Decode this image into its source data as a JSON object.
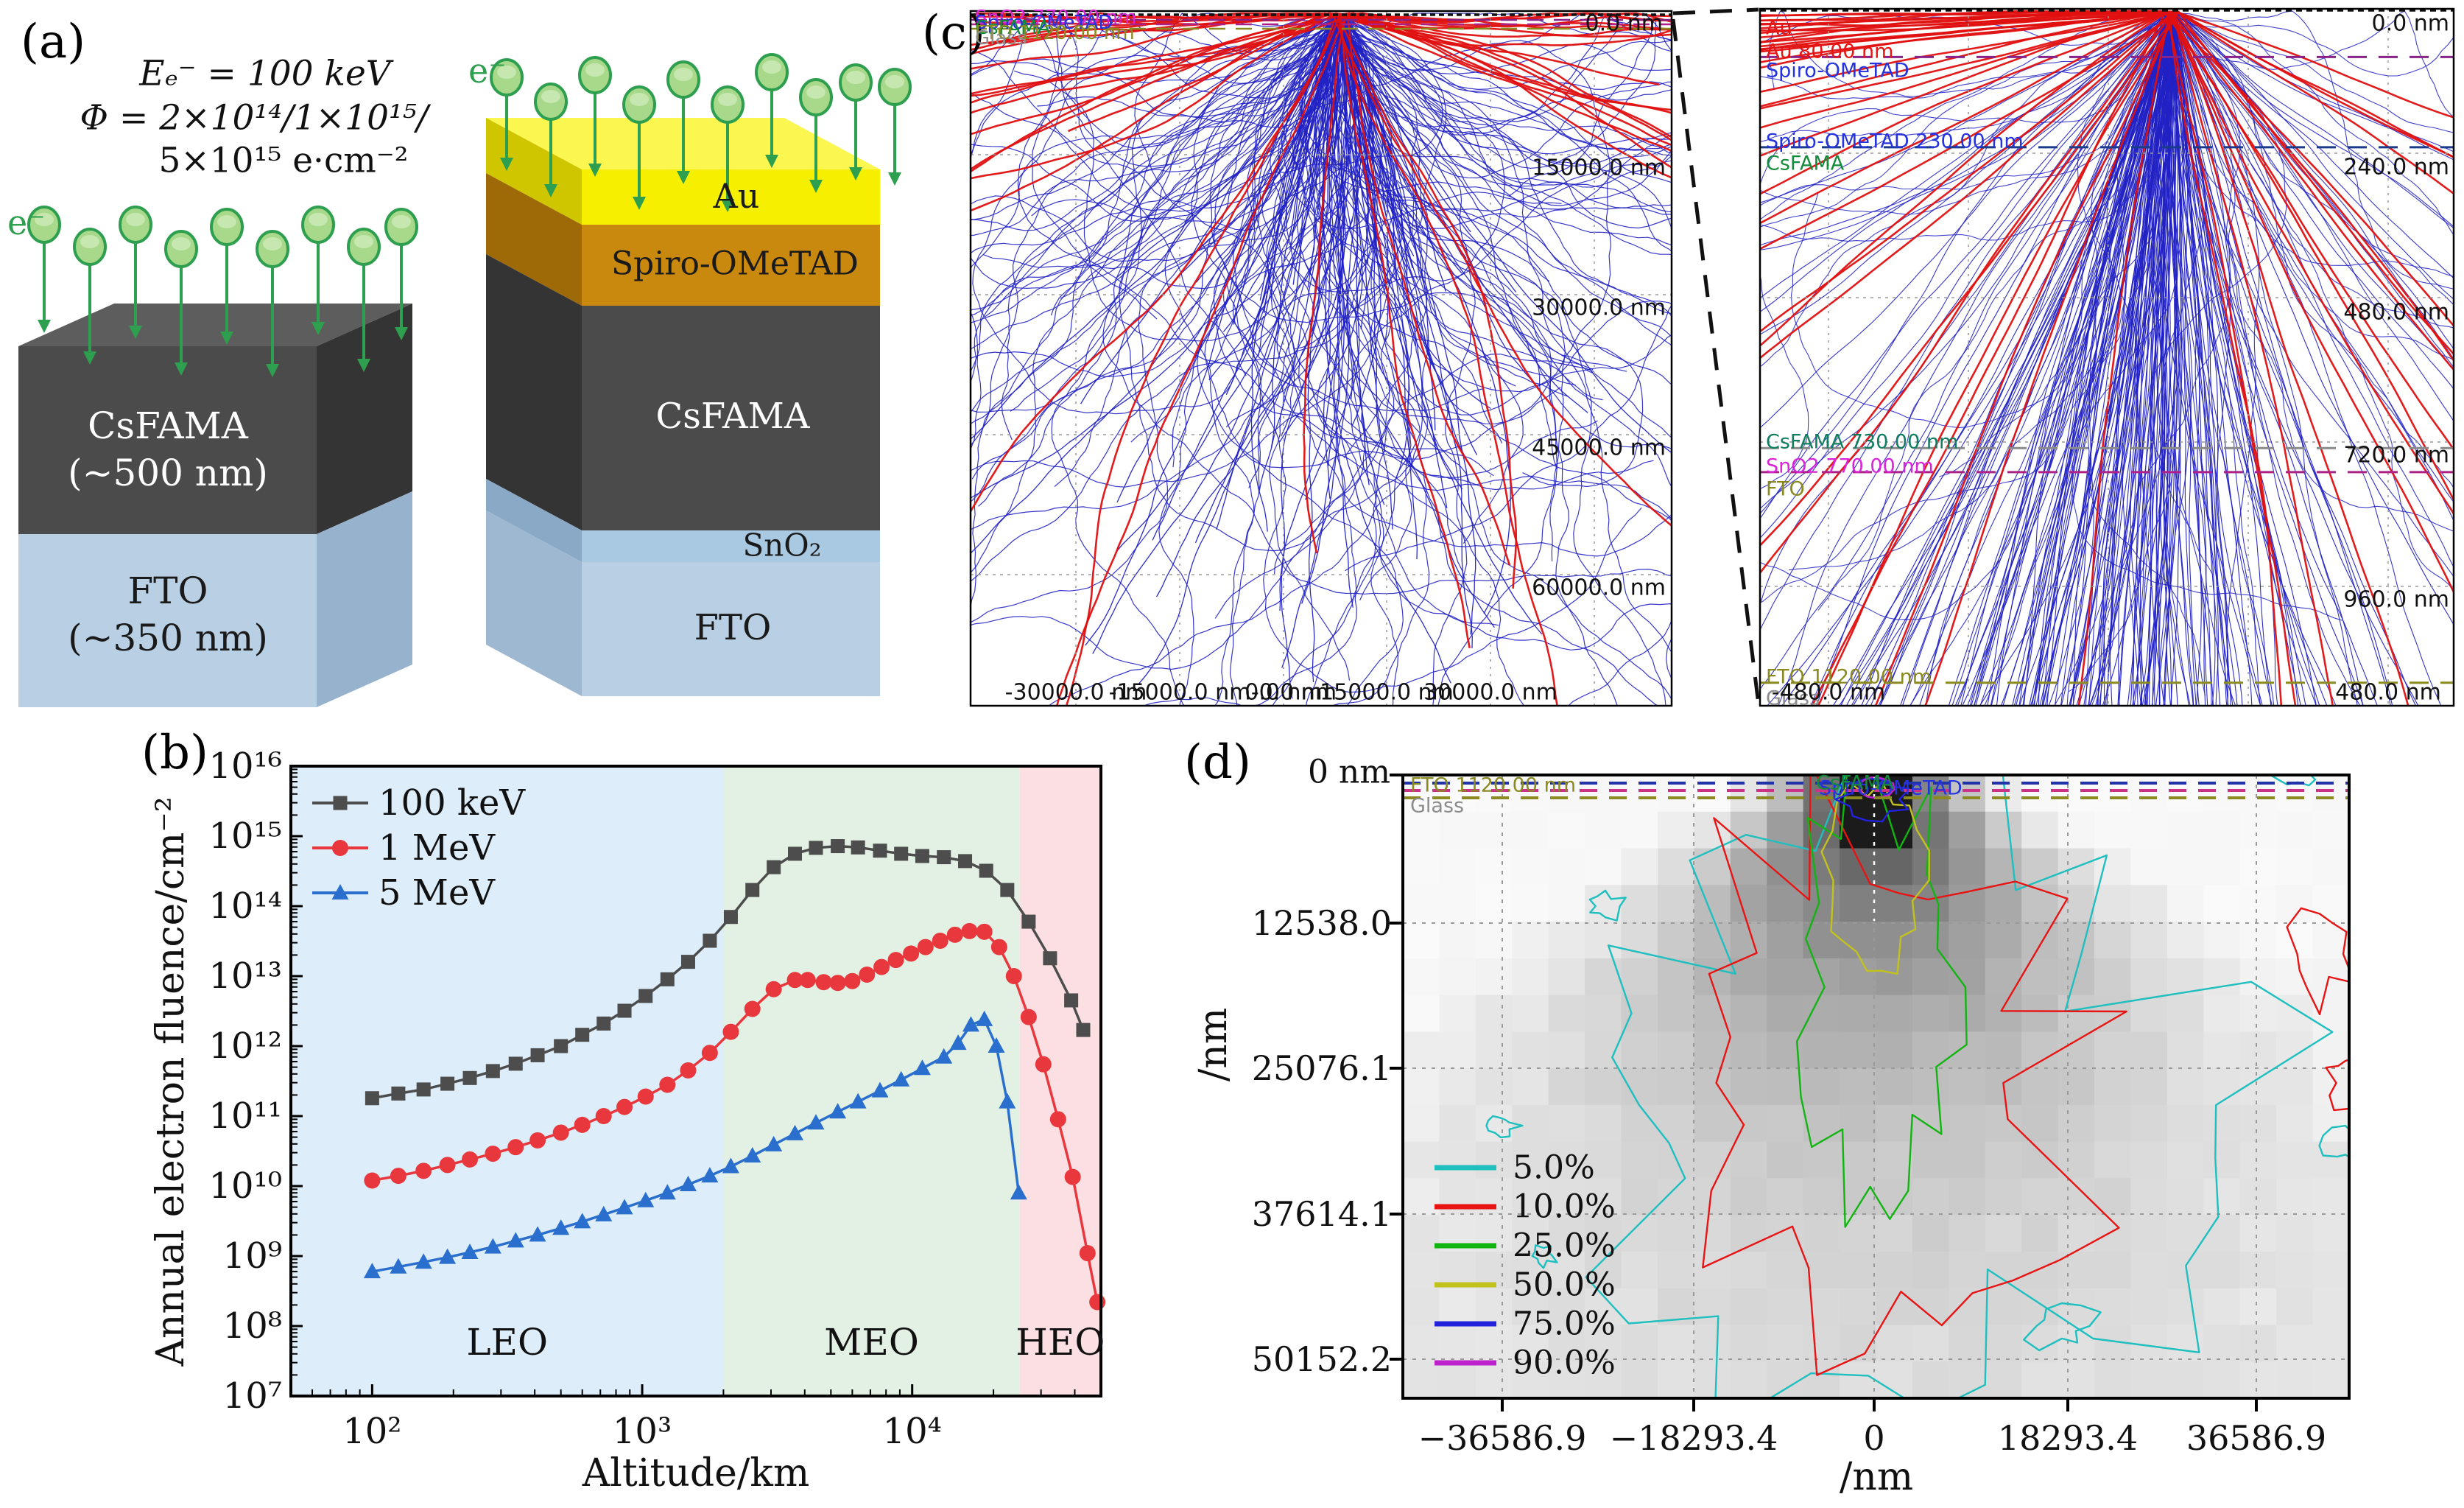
{
  "figure": {
    "background": "#ffffff"
  },
  "panel_a": {
    "label": "(a)",
    "energy": "Eₑ⁻ =  100 keV",
    "fluence1": "Φ = 2×10¹⁴/1×10¹⁵/",
    "fluence2": "5×10¹⁵ e·cm⁻²",
    "electron": "e⁻",
    "left_stack": {
      "layer1": "CsFAMA",
      "layer1_sub": "(~500 nm)",
      "layer2": "FTO",
      "layer2_sub": "(~350 nm)",
      "csfama_color": "#4b4b4b",
      "fto_color": "#b9cfe3"
    },
    "right_stack": {
      "au": "Au",
      "spiro": "Spiro-OMeTAD",
      "csfama": "CsFAMA",
      "sno2": "SnO₂",
      "fto": "FTO",
      "au_color": "#f6ef00",
      "spiro_color": "#c9880e",
      "csfama_color": "#4b4b4b",
      "sno2_color": "#a9c8e2",
      "fto_color": "#b9cfe3"
    },
    "electron_color": "#2e9e4f"
  },
  "panel_b": {
    "label": "(b)"
  },
  "panel_c": {
    "label": "(c)",
    "left_sim": {
      "top_overlap_labels": [
        {
          "text": "SnO2 770.00 nm",
          "color": "#d924d9"
        },
        {
          "text": "Spiro-OMeTAD",
          "color": "#2433dd"
        },
        {
          "text": "CsFAMA",
          "color": "#128c3a"
        },
        {
          "text": "FTO 1120.00 nm",
          "color": "#8a8a20"
        },
        {
          "text": "Glass",
          "color": "#8c8c8c"
        }
      ],
      "surface_label": "0.0 nm",
      "depth_labels": [
        "15000.0 nm",
        "30000.0 nm",
        "45000.0 nm",
        "60000.0 nm"
      ],
      "x_labels": [
        "-30000.0 nm",
        "-15000.0 nm",
        "0.0 nm",
        "15000.0 nm",
        "30000.0 nm"
      ],
      "overlap_x_label": "-0.0 nm",
      "trajectory_colors": {
        "electron": "#2121c4",
        "backscattered": "#e01010"
      }
    },
    "right_sim": {
      "layer_labels": [
        {
          "text": "Au",
          "color": "#e81414"
        },
        {
          "text": "Au 80.00 nm",
          "color": "#e81414"
        },
        {
          "text": "Spiro-OMeTAD",
          "color": "#2433dd"
        },
        {
          "text": "Spiro-OMeTAD 230.00 nm",
          "color": "#2433dd"
        },
        {
          "text": "CsFAMA",
          "color": "#128c3a"
        },
        {
          "text": "CsFAMA 730.00 nm",
          "color": "#0e7d60"
        },
        {
          "text": "SnO2 770.00 nm",
          "color": "#d924d9"
        },
        {
          "text": "FTO",
          "color": "#8a8a20"
        },
        {
          "text": "FTO 1120.00 nm",
          "color": "#8a8a20"
        },
        {
          "text": "Glass",
          "color": "#8c8c8c"
        }
      ],
      "depth_labels": [
        "0.0 nm",
        "240.0 nm",
        "480.0 nm",
        "720.0 nm",
        "960.0 nm"
      ],
      "x_labels": [
        "-480.0 nm",
        "480.0 nm"
      ],
      "boundary_depths_nm": [
        80,
        230,
        730,
        770,
        1120
      ],
      "boundary_colors": [
        "#882288",
        "#1a3a8a",
        "#8a8a8a",
        "#aa2288",
        "#8a8a20"
      ]
    }
  },
  "panel_d": {
    "label": "(d)",
    "top_labels": [
      {
        "text": "FTO 1120.00 nm",
        "color": "#8a8a20"
      },
      {
        "text": "Glass",
        "color": "#8c8c8c"
      },
      {
        "text": "Spiro-OMeTAD",
        "color": "#2433dd"
      },
      {
        "text": "CsFAMA",
        "color": "#128c3a"
      }
    ],
    "y_zero_label": "0 nm"
  },
  "chart_data": [
    {
      "id": "fluence_vs_altitude",
      "panel": "b",
      "type": "line",
      "title": "",
      "xlabel": "Altitude/km",
      "ylabel": "Annual electron fluence/cm⁻²",
      "xscale": "log",
      "yscale": "log",
      "xlim": [
        50,
        50000
      ],
      "ylim": [
        10000000.0,
        1e+16
      ],
      "x_tick_labels": [
        "10²",
        "10³",
        "10⁴"
      ],
      "x_tick_values": [
        100,
        1000,
        10000
      ],
      "y_tick_labels": [
        "10¹⁶",
        "10¹⁵",
        "10¹⁴",
        "10¹³",
        "10¹²",
        "10¹¹",
        "10¹⁰",
        "10⁹",
        "10⁸",
        "10⁷"
      ],
      "y_tick_values": [
        1e+16,
        1000000000000000.0,
        100000000000000.0,
        10000000000000.0,
        1000000000000.0,
        100000000000.0,
        10000000000.0,
        1000000000.0,
        100000000.0,
        10000000.0
      ],
      "legend_position": "top-left",
      "grid": false,
      "regions": [
        {
          "label": "LEO",
          "from": 50,
          "to": 2000,
          "color": "#ddedf9"
        },
        {
          "label": "MEO",
          "from": 2000,
          "to": 25000,
          "color": "#e3f0e4"
        },
        {
          "label": "HEO",
          "from": 25000,
          "to": 50000,
          "color": "#fbdfe2"
        }
      ],
      "series": [
        {
          "name": "100 keV",
          "color": "#4d4d4d",
          "marker": "square",
          "data": [
            [
              100,
              180000000000.0
            ],
            [
              125,
              210000000000.0
            ],
            [
              155,
              240000000000.0
            ],
            [
              190,
              290000000000.0
            ],
            [
              230,
              350000000000.0
            ],
            [
              280,
              440000000000.0
            ],
            [
              340,
              560000000000.0
            ],
            [
              410,
              740000000000.0
            ],
            [
              500,
              1000000000000.0
            ],
            [
              600,
              1450000000000.0
            ],
            [
              720,
              2100000000000.0
            ],
            [
              860,
              3200000000000.0
            ],
            [
              1030,
              5200000000000.0
            ],
            [
              1240,
              9000000000000.0
            ],
            [
              1480,
              16000000000000.0
            ],
            [
              1780,
              32000000000000.0
            ],
            [
              2130,
              70000000000000.0
            ],
            [
              2560,
              170000000000000.0
            ],
            [
              3070,
              360000000000000.0
            ],
            [
              3680,
              560000000000000.0
            ],
            [
              4400,
              680000000000000.0
            ],
            [
              5300,
              720000000000000.0
            ],
            [
              6300,
              690000000000000.0
            ],
            [
              7600,
              620000000000000.0
            ],
            [
              9100,
              560000000000000.0
            ],
            [
              10900,
              520000000000000.0
            ],
            [
              13100,
              500000000000000.0
            ],
            [
              15700,
              440000000000000.0
            ],
            [
              18800,
              320000000000000.0
            ],
            [
              22500,
              170000000000000.0
            ],
            [
              27000,
              60000000000000.0
            ],
            [
              32400,
              18000000000000.0
            ],
            [
              38800,
              4500000000000.0
            ],
            [
              43000,
              1700000000000.0
            ]
          ]
        },
        {
          "name": "1 MeV",
          "color": "#e8383d",
          "marker": "circle",
          "data": [
            [
              100,
              12000000000.0
            ],
            [
              125,
              14000000000.0
            ],
            [
              155,
              16500000000.0
            ],
            [
              190,
              20000000000.0
            ],
            [
              230,
              24000000000.0
            ],
            [
              280,
              29000000000.0
            ],
            [
              340,
              36000000000.0
            ],
            [
              410,
              45000000000.0
            ],
            [
              500,
              58000000000.0
            ],
            [
              600,
              75000000000.0
            ],
            [
              720,
              100000000000.0
            ],
            [
              860,
              135000000000.0
            ],
            [
              1030,
              190000000000.0
            ],
            [
              1240,
              280000000000.0
            ],
            [
              1480,
              450000000000.0
            ],
            [
              1780,
              800000000000.0
            ],
            [
              2130,
              1600000000000.0
            ],
            [
              2560,
              3400000000000.0
            ],
            [
              3070,
              6500000000000.0
            ],
            [
              3680,
              8800000000000.0
            ],
            [
              4100,
              8800000000000.0
            ],
            [
              4700,
              8200000000000.0
            ],
            [
              5300,
              8000000000000.0
            ],
            [
              6000,
              8500000000000.0
            ],
            [
              6800,
              10500000000000.0
            ],
            [
              7700,
              13500000000000.0
            ],
            [
              8700,
              17000000000000.0
            ],
            [
              9900,
              21000000000000.0
            ],
            [
              11200,
              26000000000000.0
            ],
            [
              12700,
              32000000000000.0
            ],
            [
              14400,
              39000000000000.0
            ],
            [
              16300,
              44000000000000.0
            ],
            [
              18500,
              43000000000000.0
            ],
            [
              21000,
              26000000000000.0
            ],
            [
              23800,
              10000000000000.0
            ],
            [
              27000,
              2600000000000.0
            ],
            [
              30600,
              550000000000.0
            ],
            [
              34700,
              90000000000.0
            ],
            [
              39300,
              13500000000.0
            ],
            [
              44600,
              1100000000.0
            ],
            [
              48500,
              220000000.0
            ]
          ]
        },
        {
          "name": "5 MeV",
          "color": "#2b6fce",
          "marker": "triangle",
          "data": [
            [
              100,
              600000000.0
            ],
            [
              125,
              700000000.0
            ],
            [
              155,
              820000000.0
            ],
            [
              190,
              960000000.0
            ],
            [
              230,
              1130000000.0
            ],
            [
              280,
              1350000000.0
            ],
            [
              340,
              1650000000.0
            ],
            [
              410,
              2000000000.0
            ],
            [
              500,
              2500000000.0
            ],
            [
              600,
              3100000000.0
            ],
            [
              720,
              3900000000.0
            ],
            [
              860,
              4900000000.0
            ],
            [
              1030,
              6200000000.0
            ],
            [
              1240,
              8000000000.0
            ],
            [
              1480,
              10500000000.0
            ],
            [
              1780,
              14000000000.0
            ],
            [
              2130,
              19000000000.0
            ],
            [
              2560,
              27000000000.0
            ],
            [
              3070,
              39000000000.0
            ],
            [
              3680,
              56000000000.0
            ],
            [
              4400,
              80000000000.0
            ],
            [
              5300,
              115000000000.0
            ],
            [
              6300,
              160000000000.0
            ],
            [
              7600,
              230000000000.0
            ],
            [
              9100,
              330000000000.0
            ],
            [
              10900,
              480000000000.0
            ],
            [
              13100,
              700000000000.0
            ],
            [
              14800,
              1100000000000.0
            ],
            [
              16500,
              2000000000000.0
            ],
            [
              18500,
              2400000000000.0
            ],
            [
              20500,
              1000000000000.0
            ],
            [
              22500,
              160000000000.0
            ],
            [
              24800,
              8000000000.0
            ]
          ]
        }
      ]
    },
    {
      "id": "backscatter_distribution_contour",
      "panel": "d",
      "type": "heatmap",
      "xlabel": "/nm",
      "ylabel": "/nm",
      "x_tick_labels": [
        "−36586.9",
        "−18293.4",
        "0",
        "18293.4",
        "36586.9"
      ],
      "x_tick_values": [
        -36586.9,
        -18293.4,
        0,
        18293.4,
        36586.9
      ],
      "y_tick_labels": [
        "0 nm",
        "12538.0",
        "25076.1",
        "37614.1",
        "50152.2"
      ],
      "y_tick_values": [
        0,
        12538.0,
        25076.1,
        37614.1,
        50152.2
      ],
      "colormap": "grays (dark = high electron density), beam entry at x = 0",
      "contour_levels": [
        {
          "label": "5.0%",
          "color": "#1fbfbf"
        },
        {
          "label": "10.0%",
          "color": "#e81414"
        },
        {
          "label": "25.0%",
          "color": "#12b412"
        },
        {
          "label": "50.0%",
          "color": "#c2c21e"
        },
        {
          "label": "75.0%",
          "color": "#2222dd"
        },
        {
          "label": "90.0%",
          "color": "#bb22cc"
        }
      ],
      "legend_position": "bottom-left"
    }
  ]
}
